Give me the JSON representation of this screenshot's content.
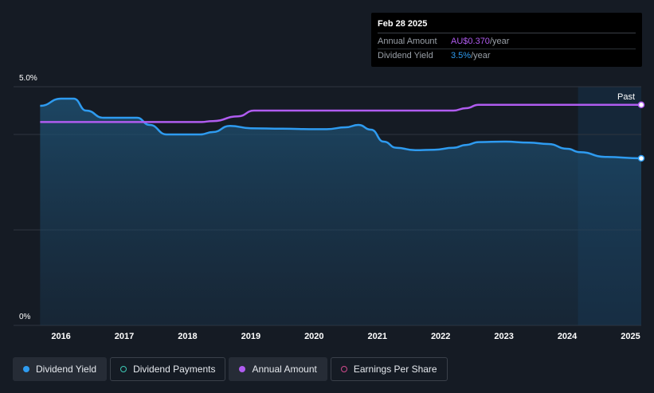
{
  "tooltip": {
    "date": "Feb 28 2025",
    "rows": [
      {
        "label": "Annual Amount",
        "value": "AU$0.370",
        "unit": "/year",
        "color": "#b05cf0"
      },
      {
        "label": "Dividend Yield",
        "value": "3.5%",
        "unit": "/year",
        "color": "#2e9bf0"
      }
    ]
  },
  "legend": [
    {
      "label": "Dividend Yield",
      "color": "#2e9bf0",
      "style": "filled-dot",
      "active": true
    },
    {
      "label": "Dividend Payments",
      "color": "#3ec9b6",
      "style": "hollow-dot",
      "active": false
    },
    {
      "label": "Annual Amount",
      "color": "#b05cf0",
      "style": "filled-dot",
      "active": true
    },
    {
      "label": "Earnings Per Share",
      "color": "#d04a8c",
      "style": "hollow-dot",
      "active": false
    }
  ],
  "chart_data": {
    "type": "line",
    "y_tick_labels": [
      "5.0%",
      "0%"
    ],
    "ylim": [
      0,
      5.0
    ],
    "xlim": [
      2015.25,
      2025.17
    ],
    "x_tick_labels": [
      "2016",
      "2017",
      "2018",
      "2019",
      "2020",
      "2021",
      "2022",
      "2023",
      "2024",
      "2025"
    ],
    "x_ticks": [
      2016,
      2017,
      2018,
      2019,
      2020,
      2021,
      2022,
      2023,
      2024,
      2025
    ],
    "past_label": "Past",
    "past_start": 2024.17,
    "grid": true,
    "series": [
      {
        "name": "Dividend Yield",
        "color": "#2e9bf0",
        "fill": true,
        "x": [
          2015.67,
          2016.0,
          2016.2,
          2016.4,
          2016.67,
          2017.0,
          2017.2,
          2017.4,
          2017.67,
          2018.0,
          2018.2,
          2018.4,
          2018.67,
          2019.0,
          2019.5,
          2020.0,
          2020.2,
          2020.5,
          2020.7,
          2020.9,
          2021.1,
          2021.3,
          2021.6,
          2021.9,
          2022.2,
          2022.4,
          2022.6,
          2023.0,
          2023.4,
          2023.7,
          2024.0,
          2024.2,
          2024.6,
          2025.17
        ],
        "y": [
          4.6,
          4.75,
          4.75,
          4.5,
          4.35,
          4.35,
          4.35,
          4.2,
          4.0,
          4.0,
          4.0,
          4.05,
          4.18,
          4.13,
          4.12,
          4.11,
          4.11,
          4.15,
          4.2,
          4.1,
          3.85,
          3.72,
          3.67,
          3.68,
          3.72,
          3.78,
          3.84,
          3.85,
          3.83,
          3.8,
          3.7,
          3.63,
          3.53,
          3.5
        ]
      },
      {
        "name": "Annual Amount",
        "color": "#b05cf0",
        "fill": false,
        "x": [
          2015.67,
          2018.2,
          2018.4,
          2018.8,
          2019.05,
          2019.5,
          2022.2,
          2022.4,
          2022.6,
          2025.17
        ],
        "y": [
          4.26,
          4.26,
          4.28,
          4.38,
          4.5,
          4.5,
          4.5,
          4.55,
          4.62,
          4.62
        ]
      }
    ]
  }
}
